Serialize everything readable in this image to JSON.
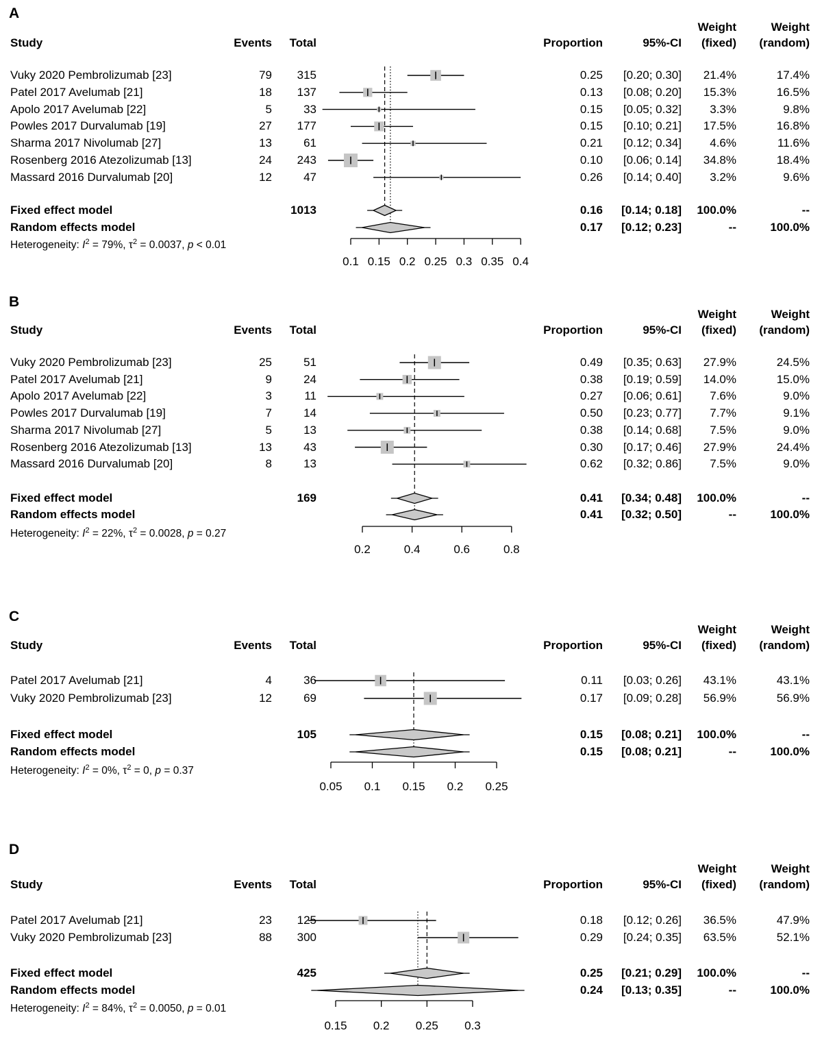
{
  "figure_title": "",
  "headers": {
    "study": "Study",
    "events": "Events",
    "total": "Total",
    "proportion": "Proportion",
    "ci": "95%-CI",
    "weight_fixed_line1": "Weight",
    "weight_fixed_line2": "(fixed)",
    "weight_random_line1": "Weight",
    "weight_random_line2": "(random)"
  },
  "colors": {
    "square_fill": "#c5c5c5",
    "diamond_fill": "#c9c9c9",
    "line": "#000000",
    "text": "#000000",
    "background": "#ffffff"
  },
  "chart_data": [
    {
      "type": "forest",
      "title": "A",
      "x_ticks": [
        0.1,
        0.15,
        0.2,
        0.25,
        0.3,
        0.35,
        0.4
      ],
      "x_tick_labels": [
        "0.1",
        "0.15",
        "0.2",
        "0.25",
        "0.3",
        "0.35",
        "0.4"
      ],
      "x_range": [
        0.1,
        0.4
      ],
      "studies": [
        {
          "study": "Vuky 2020 Pembrolizumab [23]",
          "events": "79",
          "total": "315",
          "proportion": "0.25",
          "ci": "[0.20; 0.30]",
          "weight_fixed": "21.4%",
          "weight_random": "17.4%",
          "est": 0.25,
          "lo": 0.2,
          "hi": 0.3,
          "wf": 21.4
        },
        {
          "study": "Patel 2017 Avelumab [21]",
          "events": "18",
          "total": "137",
          "proportion": "0.13",
          "ci": "[0.08; 0.20]",
          "weight_fixed": "15.3%",
          "weight_random": "16.5%",
          "est": 0.13,
          "lo": 0.08,
          "hi": 0.2,
          "wf": 15.3
        },
        {
          "study": "Apolo 2017 Avelumab [22]",
          "events": "5",
          "total": "33",
          "proportion": "0.15",
          "ci": "[0.05; 0.32]",
          "weight_fixed": "3.3%",
          "weight_random": "9.8%",
          "est": 0.15,
          "lo": 0.05,
          "hi": 0.32,
          "wf": 3.3
        },
        {
          "study": "Powles 2017 Durvalumab [19]",
          "events": "27",
          "total": "177",
          "proportion": "0.15",
          "ci": "[0.10; 0.21]",
          "weight_fixed": "17.5%",
          "weight_random": "16.8%",
          "est": 0.15,
          "lo": 0.1,
          "hi": 0.21,
          "wf": 17.5
        },
        {
          "study": "Sharma 2017 Nivolumab [27]",
          "events": "13",
          "total": "61",
          "proportion": "0.21",
          "ci": "[0.12; 0.34]",
          "weight_fixed": "4.6%",
          "weight_random": "11.6%",
          "est": 0.21,
          "lo": 0.12,
          "hi": 0.34,
          "wf": 4.6
        },
        {
          "study": "Rosenberg 2016 Atezolizumab [13]",
          "events": "24",
          "total": "243",
          "proportion": "0.10",
          "ci": "[0.06; 0.14]",
          "weight_fixed": "34.8%",
          "weight_random": "18.4%",
          "est": 0.1,
          "lo": 0.06,
          "hi": 0.14,
          "wf": 34.8
        },
        {
          "study": "Massard 2016 Durvalumab [20]",
          "events": "12",
          "total": "47",
          "proportion": "0.26",
          "ci": "[0.14; 0.40]",
          "weight_fixed": "3.2%",
          "weight_random": "9.6%",
          "est": 0.26,
          "lo": 0.14,
          "hi": 0.4,
          "wf": 3.2
        }
      ],
      "fixed": {
        "label": "Fixed effect model",
        "total": "1013",
        "proportion": "0.16",
        "ci": "[0.14; 0.18]",
        "weight_fixed": "100.0%",
        "weight_random": "--",
        "est": 0.16,
        "lo": 0.14,
        "hi": 0.18
      },
      "random": {
        "label": "Random effects model",
        "proportion": "0.17",
        "ci": "[0.12; 0.23]",
        "weight_fixed": "--",
        "weight_random": "100.0%",
        "est": 0.17,
        "lo": 0.12,
        "hi": 0.23
      },
      "het": {
        "prefix": "Heterogeneity: ",
        "i": "I",
        "sup": "2",
        "seg1": " = 79%, ",
        "tau": "τ",
        "seg2": " = 0.0037, ",
        "p": "p",
        "seg3": " < 0.01"
      }
    },
    {
      "type": "forest",
      "title": "B",
      "x_ticks": [
        0.2,
        0.4,
        0.6,
        0.8
      ],
      "x_tick_labels": [
        "0.2",
        "0.4",
        "0.6",
        "0.8"
      ],
      "x_range": [
        0.2,
        0.8
      ],
      "studies": [
        {
          "study": "Vuky 2020 Pembrolizumab [23]",
          "events": "25",
          "total": "51",
          "proportion": "0.49",
          "ci": "[0.35; 0.63]",
          "weight_fixed": "27.9%",
          "weight_random": "24.5%",
          "est": 0.49,
          "lo": 0.35,
          "hi": 0.63,
          "wf": 27.9
        },
        {
          "study": "Patel 2017 Avelumab [21]",
          "events": "9",
          "total": "24",
          "proportion": "0.38",
          "ci": "[0.19; 0.59]",
          "weight_fixed": "14.0%",
          "weight_random": "15.0%",
          "est": 0.38,
          "lo": 0.19,
          "hi": 0.59,
          "wf": 14.0
        },
        {
          "study": "Apolo 2017 Avelumab [22]",
          "events": "3",
          "total": "11",
          "proportion": "0.27",
          "ci": "[0.06; 0.61]",
          "weight_fixed": "7.6%",
          "weight_random": "9.0%",
          "est": 0.27,
          "lo": 0.06,
          "hi": 0.61,
          "wf": 7.6
        },
        {
          "study": "Powles 2017 Durvalumab [19]",
          "events": "7",
          "total": "14",
          "proportion": "0.50",
          "ci": "[0.23; 0.77]",
          "weight_fixed": "7.7%",
          "weight_random": "9.1%",
          "est": 0.5,
          "lo": 0.23,
          "hi": 0.77,
          "wf": 7.7
        },
        {
          "study": "Sharma 2017 Nivolumab [27]",
          "events": "5",
          "total": "13",
          "proportion": "0.38",
          "ci": "[0.14; 0.68]",
          "weight_fixed": "7.5%",
          "weight_random": "9.0%",
          "est": 0.38,
          "lo": 0.14,
          "hi": 0.68,
          "wf": 7.5
        },
        {
          "study": "Rosenberg 2016 Atezolizumab [13]",
          "events": "13",
          "total": "43",
          "proportion": "0.30",
          "ci": "[0.17; 0.46]",
          "weight_fixed": "27.9%",
          "weight_random": "24.4%",
          "est": 0.3,
          "lo": 0.17,
          "hi": 0.46,
          "wf": 27.9
        },
        {
          "study": "Massard 2016 Durvalumab [20]",
          "events": "8",
          "total": "13",
          "proportion": "0.62",
          "ci": "[0.32; 0.86]",
          "weight_fixed": "7.5%",
          "weight_random": "9.0%",
          "est": 0.62,
          "lo": 0.32,
          "hi": 0.86,
          "wf": 7.5
        }
      ],
      "fixed": {
        "label": "Fixed effect model",
        "total": "169",
        "proportion": "0.41",
        "ci": "[0.34; 0.48]",
        "weight_fixed": "100.0%",
        "weight_random": "--",
        "est": 0.41,
        "lo": 0.34,
        "hi": 0.48
      },
      "random": {
        "label": "Random effects model",
        "proportion": "0.41",
        "ci": "[0.32; 0.50]",
        "weight_fixed": "--",
        "weight_random": "100.0%",
        "est": 0.41,
        "lo": 0.32,
        "hi": 0.5
      },
      "het": {
        "prefix": "Heterogeneity: ",
        "i": "I",
        "sup": "2",
        "seg1": " = 22%, ",
        "tau": "τ",
        "seg2": " = 0.0028, ",
        "p": "p",
        "seg3": " = 0.27"
      }
    },
    {
      "type": "forest",
      "title": "C",
      "x_ticks": [
        0.05,
        0.1,
        0.15,
        0.2,
        0.25
      ],
      "x_tick_labels": [
        "0.05",
        "0.1",
        "0.15",
        "0.2",
        "0.25"
      ],
      "x_range": [
        0.05,
        0.25
      ],
      "studies": [
        {
          "study": "Patel 2017 Avelumab [21]",
          "events": "4",
          "total": "36",
          "proportion": "0.11",
          "ci": "[0.03; 0.26]",
          "weight_fixed": "43.1%",
          "weight_random": "43.1%",
          "est": 0.11,
          "lo": 0.03,
          "hi": 0.26,
          "wf": 43.1
        },
        {
          "study": "Vuky 2020 Pembrolizumab [23]",
          "events": "12",
          "total": "69",
          "proportion": "0.17",
          "ci": "[0.09; 0.28]",
          "weight_fixed": "56.9%",
          "weight_random": "56.9%",
          "est": 0.17,
          "lo": 0.09,
          "hi": 0.28,
          "wf": 56.9
        }
      ],
      "fixed": {
        "label": "Fixed effect model",
        "total": "105",
        "proportion": "0.15",
        "ci": "[0.08; 0.21]",
        "weight_fixed": "100.0%",
        "weight_random": "--",
        "est": 0.15,
        "lo": 0.08,
        "hi": 0.21
      },
      "random": {
        "label": "Random effects model",
        "proportion": "0.15",
        "ci": "[0.08; 0.21]",
        "weight_fixed": "--",
        "weight_random": "100.0%",
        "est": 0.15,
        "lo": 0.08,
        "hi": 0.21
      },
      "het": {
        "prefix": "Heterogeneity: ",
        "i": "I",
        "sup": "2",
        "seg1": " = 0%, ",
        "tau": "τ",
        "seg2": " = 0, ",
        "p": "p",
        "seg3": " = 0.37"
      }
    },
    {
      "type": "forest",
      "title": "D",
      "x_ticks": [
        0.15,
        0.2,
        0.25,
        0.3
      ],
      "x_tick_labels": [
        "0.15",
        "0.2",
        "0.25",
        "0.3"
      ],
      "x_range": [
        0.15,
        0.3
      ],
      "studies": [
        {
          "study": "Patel 2017 Avelumab [21]",
          "events": "23",
          "total": "125",
          "proportion": "0.18",
          "ci": "[0.12; 0.26]",
          "weight_fixed": "36.5%",
          "weight_random": "47.9%",
          "est": 0.18,
          "lo": 0.12,
          "hi": 0.26,
          "wf": 36.5
        },
        {
          "study": "Vuky 2020 Pembrolizumab [23]",
          "events": "88",
          "total": "300",
          "proportion": "0.29",
          "ci": "[0.24; 0.35]",
          "weight_fixed": "63.5%",
          "weight_random": "52.1%",
          "est": 0.29,
          "lo": 0.24,
          "hi": 0.35,
          "wf": 63.5
        }
      ],
      "fixed": {
        "label": "Fixed effect model",
        "total": "425",
        "proportion": "0.25",
        "ci": "[0.21; 0.29]",
        "weight_fixed": "100.0%",
        "weight_random": "--",
        "est": 0.25,
        "lo": 0.21,
        "hi": 0.29
      },
      "random": {
        "label": "Random effects model",
        "proportion": "0.24",
        "ci": "[0.13; 0.35]",
        "weight_fixed": "--",
        "weight_random": "100.0%",
        "est": 0.24,
        "lo": 0.13,
        "hi": 0.35
      },
      "het": {
        "prefix": "Heterogeneity: ",
        "i": "I",
        "sup": "2",
        "seg1": " = 84%, ",
        "tau": "τ",
        "seg2": " = 0.0050, ",
        "p": "p",
        "seg3": " = 0.01"
      }
    }
  ]
}
